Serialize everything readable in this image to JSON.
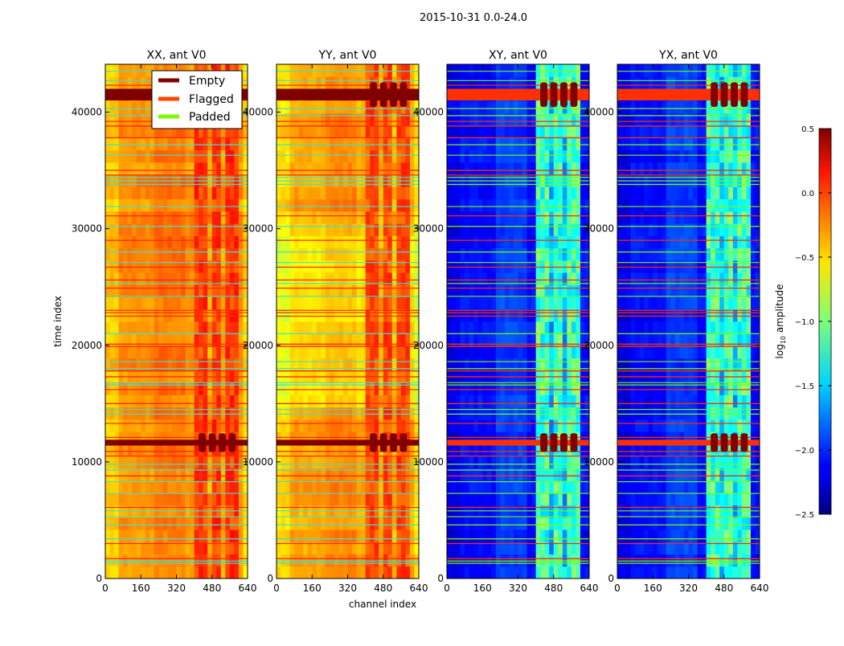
{
  "chart_data": {
    "type": "heatmap",
    "title": "2015-10-31 0.0-24.0",
    "xlabel": "channel index",
    "ylabel": "time index",
    "xlim": [
      0,
      640
    ],
    "ylim": [
      0,
      44100
    ],
    "xticks": [
      "0",
      "160",
      "320",
      "480",
      "640"
    ],
    "xtick_values": [
      0,
      160,
      320,
      480,
      640
    ],
    "yticks": [
      "0",
      "10000",
      "20000",
      "30000",
      "40000"
    ],
    "ytick_values": [
      0,
      10000,
      20000,
      30000,
      40000
    ],
    "rfi_channels": [
      400,
      600
    ],
    "panels": [
      {
        "title": "XX, ant V0",
        "base_level": -0.3,
        "rfi_level": -0.05,
        "low_time_shift": 0.0
      },
      {
        "title": "YY, ant V0",
        "base_level": -0.35,
        "rfi_level": -0.1,
        "low_time_shift": -0.2
      },
      {
        "title": "XY, ant V0",
        "base_level": -2.1,
        "rfi_level": -1.2,
        "low_time_shift": 0.0
      },
      {
        "title": "YX, ant V0",
        "base_level": -2.1,
        "rfi_level": -1.2,
        "low_time_shift": 0.0
      }
    ],
    "empty_rows": [
      [
        41000,
        42000
      ],
      [
        11400,
        11900
      ]
    ],
    "flagged_rows": [
      42300,
      39200,
      38800,
      37800,
      35000,
      34600,
      31100,
      29000,
      26700,
      25600,
      24900,
      23000,
      22800,
      22500,
      20100,
      19900,
      17800,
      17300,
      16200,
      15000,
      13300,
      12100,
      10900,
      10500,
      8800,
      6100,
      3000,
      1700
    ],
    "padded_rows": [
      43500,
      42700,
      40300,
      39700,
      37200,
      36300,
      34400,
      34100,
      33800,
      31900,
      30200,
      28000,
      27100,
      25300,
      24200,
      21000,
      18600,
      18000,
      16800,
      16600,
      14500,
      14100,
      9800,
      9300,
      8300,
      7300,
      5800,
      5300,
      4600,
      3400,
      1500,
      1300
    ],
    "legend": {
      "position": "upper-right of first panel",
      "entries": [
        {
          "label": "Empty",
          "color": "#800000"
        },
        {
          "label": "Flagged",
          "color": "#ff4500"
        },
        {
          "label": "Padded",
          "color": "#7cfc00"
        }
      ]
    },
    "colorbar": {
      "label_main": "log",
      "label_sub": "10",
      "label_rest": " amplitude",
      "range": [
        -2.5,
        0.5
      ],
      "colormap": "jet",
      "ticks": [
        "0.5",
        "0.0",
        "−0.5",
        "−1.0",
        "−1.5",
        "−2.0",
        "−2.5"
      ],
      "tick_values": [
        0.5,
        0.0,
        -0.5,
        -1.0,
        -1.5,
        -2.0,
        -2.5
      ]
    }
  }
}
